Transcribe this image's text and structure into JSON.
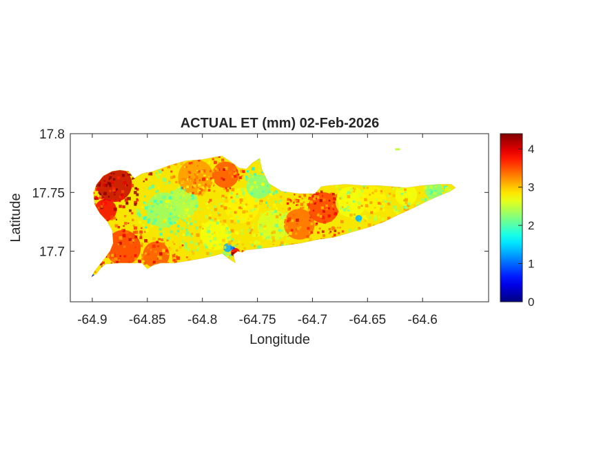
{
  "chart_data": {
    "type": "heatmap",
    "title": "ACTUAL ET (mm) 02-Feb-2026",
    "xlabel": "Longitude",
    "ylabel": "Latitude",
    "xlim": [
      -64.92,
      -64.54
    ],
    "ylim": [
      17.657,
      17.8
    ],
    "xticks": [
      -64.9,
      -64.85,
      -64.8,
      -64.75,
      -64.7,
      -64.65,
      -64.6
    ],
    "xtick_labels": [
      "-64.9",
      "-64.85",
      "-64.8",
      "-64.75",
      "-64.7",
      "-64.65",
      "-64.6"
    ],
    "yticks": [
      17.7,
      17.75,
      17.8
    ],
    "ytick_labels": [
      "17.7",
      "17.75",
      "17.8"
    ],
    "colorbar": {
      "colormap": "jet",
      "range": [
        0,
        4.4
      ],
      "ticks": [
        0,
        1,
        2,
        3,
        4
      ],
      "tick_labels": [
        "0",
        "1",
        "2",
        "3",
        "4"
      ]
    },
    "grid": false,
    "region_outline": [
      [
        -64.901,
        17.678
      ],
      [
        -64.896,
        17.681
      ],
      [
        -64.892,
        17.686
      ],
      [
        -64.888,
        17.689
      ],
      [
        -64.876,
        17.69
      ],
      [
        -64.866,
        17.69
      ],
      [
        -64.855,
        17.69
      ],
      [
        -64.85,
        17.685
      ],
      [
        -64.845,
        17.688
      ],
      [
        -64.838,
        17.69
      ],
      [
        -64.825,
        17.69
      ],
      [
        -64.812,
        17.692
      ],
      [
        -64.8,
        17.694
      ],
      [
        -64.79,
        17.696
      ],
      [
        -64.782,
        17.698
      ],
      [
        -64.775,
        17.693
      ],
      [
        -64.77,
        17.69
      ],
      [
        -64.772,
        17.697
      ],
      [
        -64.768,
        17.7
      ],
      [
        -64.764,
        17.699
      ],
      [
        -64.76,
        17.701
      ],
      [
        -64.74,
        17.703
      ],
      [
        -64.725,
        17.705
      ],
      [
        -64.71,
        17.707
      ],
      [
        -64.695,
        17.71
      ],
      [
        -64.68,
        17.712
      ],
      [
        -64.665,
        17.716
      ],
      [
        -64.65,
        17.72
      ],
      [
        -64.635,
        17.725
      ],
      [
        -64.622,
        17.731
      ],
      [
        -64.608,
        17.737
      ],
      [
        -64.595,
        17.743
      ],
      [
        -64.583,
        17.748
      ],
      [
        -64.575,
        17.751
      ],
      [
        -64.57,
        17.754
      ],
      [
        -64.574,
        17.757
      ],
      [
        -64.585,
        17.757
      ],
      [
        -64.6,
        17.756
      ],
      [
        -64.615,
        17.754
      ],
      [
        -64.628,
        17.755
      ],
      [
        -64.64,
        17.756
      ],
      [
        -64.655,
        17.756
      ],
      [
        -64.67,
        17.757
      ],
      [
        -64.685,
        17.756
      ],
      [
        -64.692,
        17.755
      ],
      [
        -64.698,
        17.749
      ],
      [
        -64.712,
        17.749
      ],
      [
        -64.728,
        17.751
      ],
      [
        -64.74,
        17.758
      ],
      [
        -64.746,
        17.77
      ],
      [
        -64.748,
        17.779
      ],
      [
        -64.755,
        17.775
      ],
      [
        -64.76,
        17.77
      ],
      [
        -64.767,
        17.771
      ],
      [
        -64.774,
        17.776
      ],
      [
        -64.782,
        17.781
      ],
      [
        -64.79,
        17.78
      ],
      [
        -64.8,
        17.778
      ],
      [
        -64.815,
        17.777
      ],
      [
        -64.83,
        17.773
      ],
      [
        -64.845,
        17.768
      ],
      [
        -64.855,
        17.766
      ],
      [
        -64.862,
        17.762
      ],
      [
        -64.867,
        17.768
      ],
      [
        -64.875,
        17.769
      ],
      [
        -64.882,
        17.768
      ],
      [
        -64.89,
        17.764
      ],
      [
        -64.896,
        17.757
      ],
      [
        -64.899,
        17.75
      ],
      [
        -64.898,
        17.74
      ],
      [
        -64.893,
        17.732
      ],
      [
        -64.887,
        17.726
      ],
      [
        -64.882,
        17.718
      ],
      [
        -64.881,
        17.707
      ],
      [
        -64.884,
        17.7
      ],
      [
        -64.888,
        17.695
      ],
      [
        -64.893,
        17.689
      ],
      [
        -64.898,
        17.683
      ]
    ],
    "et_zones": [
      {
        "lon": -64.88,
        "lat": 17.757,
        "radius": 0.016,
        "value": 4.1
      },
      {
        "lon": -64.888,
        "lat": 17.735,
        "radius": 0.01,
        "value": 3.9
      },
      {
        "lon": -64.872,
        "lat": 17.703,
        "radius": 0.016,
        "value": 3.6
      },
      {
        "lon": -64.842,
        "lat": 17.697,
        "radius": 0.012,
        "value": 3.5
      },
      {
        "lon": -64.835,
        "lat": 17.735,
        "radius": 0.016,
        "value": 2.3
      },
      {
        "lon": -64.818,
        "lat": 17.741,
        "radius": 0.014,
        "value": 2.4
      },
      {
        "lon": -64.806,
        "lat": 17.763,
        "radius": 0.016,
        "value": 3.2
      },
      {
        "lon": -64.779,
        "lat": 17.765,
        "radius": 0.012,
        "value": 3.5
      },
      {
        "lon": -64.788,
        "lat": 17.714,
        "radius": 0.014,
        "value": 2.7
      },
      {
        "lon": -64.764,
        "lat": 17.739,
        "radius": 0.016,
        "value": 2.8
      },
      {
        "lon": -64.749,
        "lat": 17.755,
        "radius": 0.011,
        "value": 2.2
      },
      {
        "lon": -64.736,
        "lat": 17.722,
        "radius": 0.014,
        "value": 2.6
      },
      {
        "lon": -64.712,
        "lat": 17.723,
        "radius": 0.014,
        "value": 3.4
      },
      {
        "lon": -64.69,
        "lat": 17.737,
        "radius": 0.014,
        "value": 3.6
      },
      {
        "lon": -64.665,
        "lat": 17.742,
        "radius": 0.014,
        "value": 2.7
      },
      {
        "lon": -64.645,
        "lat": 17.744,
        "radius": 0.012,
        "value": 2.8
      },
      {
        "lon": -64.615,
        "lat": 17.748,
        "radius": 0.01,
        "value": 2.7
      },
      {
        "lon": -64.59,
        "lat": 17.752,
        "radius": 0.008,
        "value": 2.2
      },
      {
        "lon": -64.77,
        "lat": 17.699,
        "radius": 0.004,
        "value": 3.9
      },
      {
        "lon": -64.777,
        "lat": 17.703,
        "radius": 0.004,
        "value": 1.3
      },
      {
        "lon": -64.658,
        "lat": 17.728,
        "radius": 0.003,
        "value": 1.3
      },
      {
        "lon": -64.9,
        "lat": 17.679,
        "radius": 0.002,
        "value": 1.0
      }
    ],
    "islet": {
      "lon": -64.623,
      "lat": 17.787,
      "value": 2.5
    }
  }
}
